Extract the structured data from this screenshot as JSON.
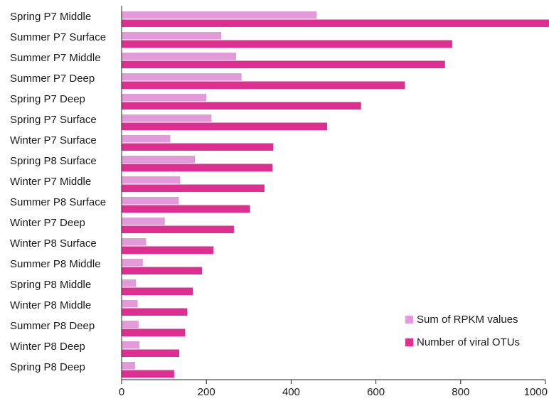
{
  "chart_data": {
    "type": "bar",
    "orientation": "horizontal",
    "title": "",
    "xlabel": "",
    "ylabel": "",
    "xlim": [
      0,
      1000
    ],
    "xticks": [
      0,
      200,
      400,
      600,
      800,
      1000
    ],
    "grid": false,
    "legend_position": "bottom-right",
    "categories": [
      "Spring P7 Middle",
      "Summer P7 Surface",
      "Summer P7 Middle",
      "Summer P7 Deep",
      "Spring P7 Deep",
      "Spring P7 Surface",
      "Winter P7 Surface",
      "Spring P8 Surface",
      "Winter P7 Middle",
      "Summer P8 Surface",
      "Winter P7 Deep",
      "Winter P8 Surface",
      "Summer P8 Middle",
      "Spring P8 Middle",
      "Winter P8 Middle",
      "Summer P8 Deep",
      "Winter P8 Deep",
      "Spring P8 Deep"
    ],
    "series": [
      {
        "name": "Sum of RPKM values",
        "color": "#e39ad8",
        "values": [
          460,
          235,
          270,
          283,
          200,
          212,
          115,
          173,
          138,
          135,
          102,
          58,
          50,
          34,
          38,
          40,
          42,
          32
        ]
      },
      {
        "name": "Number of viral OTUs",
        "color": "#dd2f8f",
        "values": [
          1035,
          780,
          763,
          668,
          565,
          485,
          358,
          356,
          337,
          303,
          265,
          217,
          190,
          168,
          155,
          150,
          136,
          124
        ]
      }
    ]
  }
}
